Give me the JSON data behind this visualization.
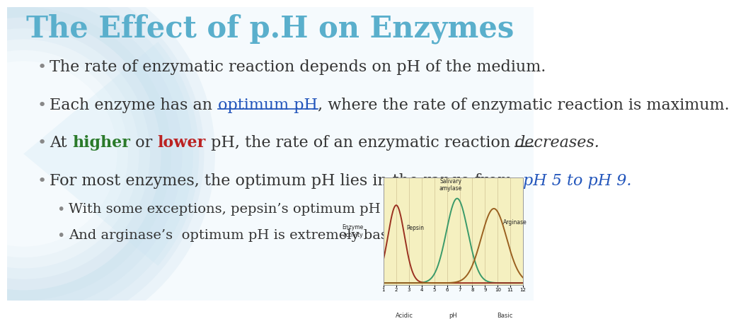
{
  "title": "The Effect of p.H on Enzymes",
  "title_color": "#5aafcc",
  "title_fontsize": 30,
  "bg_color_main": "#f2f8fb",
  "bg_color_left": "#cfe8f3",
  "text_color": "#333333",
  "bullet_dot_color": "#888888",
  "bullet1": "The rate of enzymatic reaction depends on pH of the medium.",
  "bullet2_pre": "Each enzyme has an ",
  "bullet2_link": "optimum pH",
  "bullet2_post": ", where the rate of enzymatic reaction is maximum.",
  "bullet2_link_color": "#2255bb",
  "bullet3_pre": "At ",
  "bullet3_higher": "higher",
  "bullet3_higher_color": "#2a7a2a",
  "bullet3_mid": " or ",
  "bullet3_lower": "lower",
  "bullet3_lower_color": "#bb2222",
  "bullet3_post": " pH, the rate of an enzymatic reaction ",
  "bullet3_decreases": "decreases.",
  "bullet4_pre": "For most enzymes, the optimum pH lies in the range from  ",
  "bullet4_range": "pH 5 to pH 9.",
  "bullet4_range_color": "#2255bb",
  "sub1": "With some exceptions, pepsin’s optimum pH is extremely acidic.",
  "sub2": "And arginase’s  optimum pH is extremely basic.",
  "font_size_bullet": 16,
  "font_size_sub": 14,
  "graph_bg": "#f5f0c0",
  "salivary_color": "#3a9a6a",
  "pepsin_color": "#9a3020",
  "arginase_color": "#9a6020"
}
